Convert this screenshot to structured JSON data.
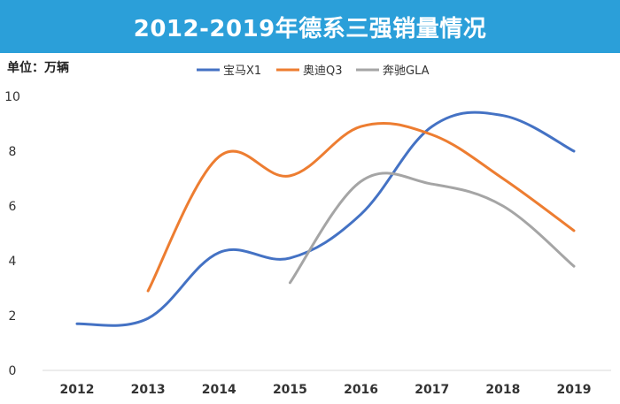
{
  "title": "2012-2019年德系三强销量情况",
  "unit_label": "单位：万辆",
  "chart_data": {
    "type": "line",
    "title": "2012-2019年德系三强销量情况",
    "xlabel": "",
    "ylabel": "单位：万辆",
    "categories": [
      "2012",
      "2013",
      "2014",
      "2015",
      "2016",
      "2017",
      "2018",
      "2019"
    ],
    "ylim": [
      0,
      10
    ],
    "yticks": [
      "0",
      "2",
      "4",
      "6",
      "8",
      "10"
    ],
    "grid": false,
    "legend_position": "top",
    "smooth": true,
    "series": [
      {
        "name": "宝马X1",
        "color": "#4472c4",
        "values": [
          1.7,
          1.9,
          4.3,
          4.1,
          5.7,
          8.9,
          9.3,
          8.0
        ]
      },
      {
        "name": "奥迪Q3",
        "color": "#ed7d31",
        "values": [
          null,
          2.9,
          7.8,
          7.1,
          8.9,
          8.6,
          7.0,
          5.1
        ]
      },
      {
        "name": "奔驰GLA",
        "color": "#a5a5a5",
        "values": [
          null,
          null,
          null,
          3.2,
          6.9,
          6.8,
          6.0,
          3.8
        ]
      }
    ]
  }
}
